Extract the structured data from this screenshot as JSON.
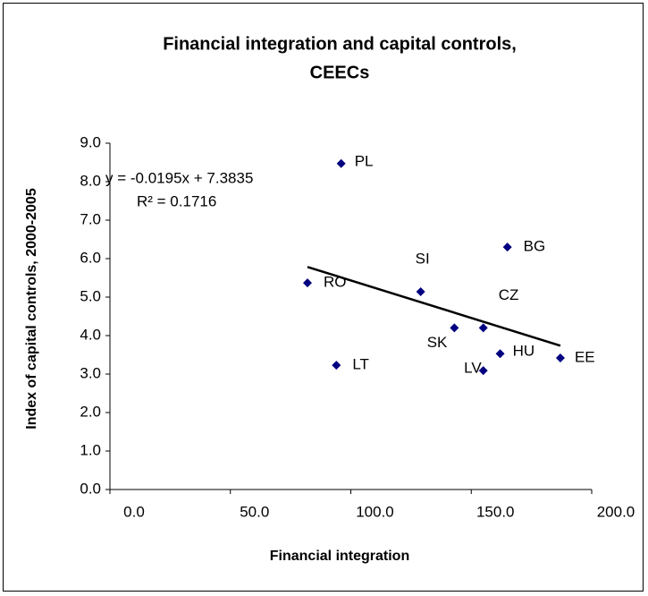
{
  "chart_data": {
    "type": "scatter",
    "title": [
      "Financial integration and capital controls,",
      "CEECs"
    ],
    "x_label": "Financial integration",
    "y_label": "Index of capital controls, 2000-2005",
    "series": [
      {
        "color": "#000080",
        "labels": [
          "PL",
          "BG",
          "RO",
          "SI",
          "CZ",
          "SK",
          "HU",
          "EE",
          "LT",
          "LV"
        ],
        "x": [
          96,
          165,
          82,
          129,
          155,
          143,
          162,
          187,
          94,
          155
        ],
        "values": [
          8.47,
          6.3,
          5.37,
          5.14,
          4.2,
          4.2,
          3.53,
          3.42,
          3.23,
          3.09
        ]
      }
    ],
    "trendline": {
      "slope": -0.0195,
      "intercept": 7.3835,
      "label": "y = -0.0195x + 7.3835",
      "r_squared_label": "R² = 0.1716"
    },
    "xlim": [
      0,
      200
    ],
    "xticks": [
      {
        "value": 0,
        "label": "0.0"
      },
      {
        "value": 50,
        "label": "50.0"
      },
      {
        "value": 100,
        "label": "100.0"
      },
      {
        "value": 150,
        "label": "150.0"
      },
      {
        "value": 200,
        "label": "200.0"
      }
    ],
    "ylim": [
      0,
      9
    ],
    "yticks": [
      {
        "value": 0,
        "label": "0.0"
      },
      {
        "value": 1,
        "label": "1.0"
      },
      {
        "value": 2,
        "label": "2.0"
      },
      {
        "value": 3,
        "label": "3.0"
      },
      {
        "value": 4,
        "label": "4.0"
      },
      {
        "value": 5,
        "label": "5.0"
      },
      {
        "value": 6,
        "label": "6.0"
      },
      {
        "value": 7,
        "label": "7.0"
      },
      {
        "value": 8,
        "label": "8.0"
      },
      {
        "value": 9,
        "label": "9.0"
      }
    ],
    "grid": false
  }
}
